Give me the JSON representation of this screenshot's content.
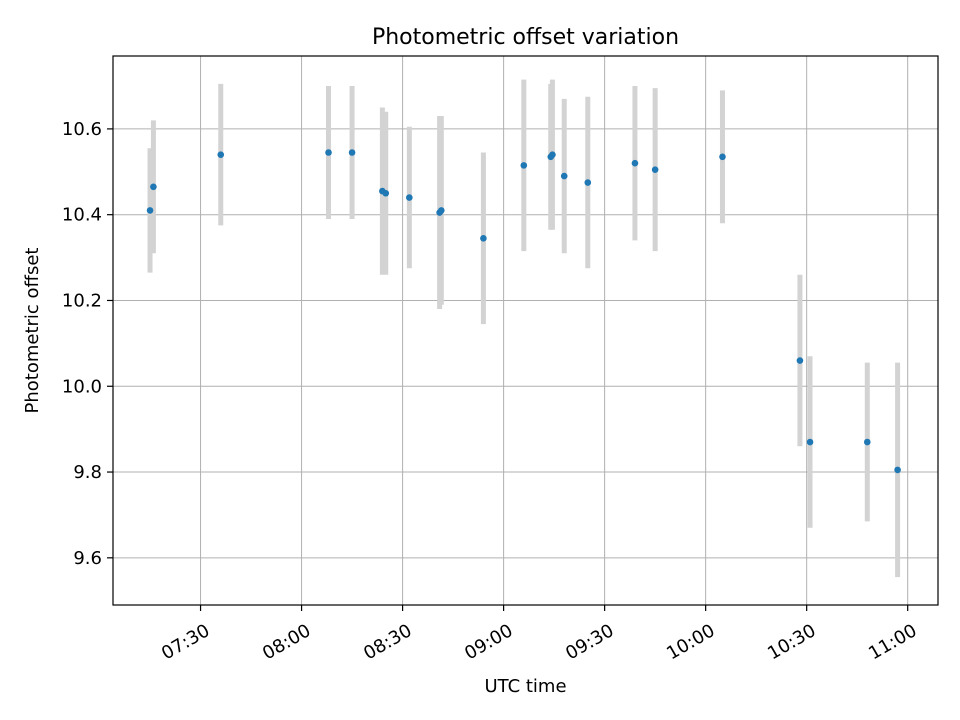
{
  "chart_data": {
    "type": "scatter",
    "title": "Photometric offset variation",
    "xlabel": "UTC time",
    "ylabel": "Photometric offset",
    "x_ticks": [
      "07:30",
      "08:00",
      "08:30",
      "09:00",
      "09:30",
      "10:00",
      "10:30",
      "11:00"
    ],
    "y_ticks": [
      "9.6",
      "9.8",
      "10.0",
      "10.2",
      "10.4",
      "10.6"
    ],
    "xlim": [
      "07:04",
      "11:09"
    ],
    "ylim": [
      9.49,
      10.77
    ],
    "grid": true,
    "errorbar_color": "#d3d3d3",
    "marker_color": "#1f77b4",
    "series": [
      {
        "points": [
          {
            "x": "07:15",
            "y": 10.41,
            "err": 0.145
          },
          {
            "x": "07:16",
            "y": 10.465,
            "err": 0.155
          },
          {
            "x": "07:36",
            "y": 10.54,
            "err": 0.165
          },
          {
            "x": "08:08",
            "y": 10.545,
            "err": 0.155
          },
          {
            "x": "08:15",
            "y": 10.545,
            "err": 0.155
          },
          {
            "x": "08:24",
            "y": 10.455,
            "err": 0.195
          },
          {
            "x": "08:25",
            "y": 10.45,
            "err": 0.19
          },
          {
            "x": "08:32",
            "y": 10.44,
            "err": 0.165
          },
          {
            "x": "08:41",
            "y": 10.405,
            "err": 0.225
          },
          {
            "x": "08:41.5",
            "y": 10.41,
            "err": 0.22
          },
          {
            "x": "08:54",
            "y": 10.345,
            "err": 0.2
          },
          {
            "x": "09:06",
            "y": 10.515,
            "err": 0.2
          },
          {
            "x": "09:14",
            "y": 10.535,
            "err": 0.17
          },
          {
            "x": "09:14.5",
            "y": 10.54,
            "err": 0.175
          },
          {
            "x": "09:18",
            "y": 10.49,
            "err": 0.18
          },
          {
            "x": "09:25",
            "y": 10.475,
            "err": 0.2
          },
          {
            "x": "09:39",
            "y": 10.52,
            "err": 0.18
          },
          {
            "x": "09:45",
            "y": 10.505,
            "err": 0.19
          },
          {
            "x": "10:05",
            "y": 10.535,
            "err": 0.155
          },
          {
            "x": "10:28",
            "y": 10.06,
            "err": 0.2
          },
          {
            "x": "10:31",
            "y": 9.87,
            "err": 0.2
          },
          {
            "x": "10:48",
            "y": 9.87,
            "err": 0.185
          },
          {
            "x": "10:57",
            "y": 9.805,
            "err": 0.25
          }
        ]
      }
    ]
  }
}
